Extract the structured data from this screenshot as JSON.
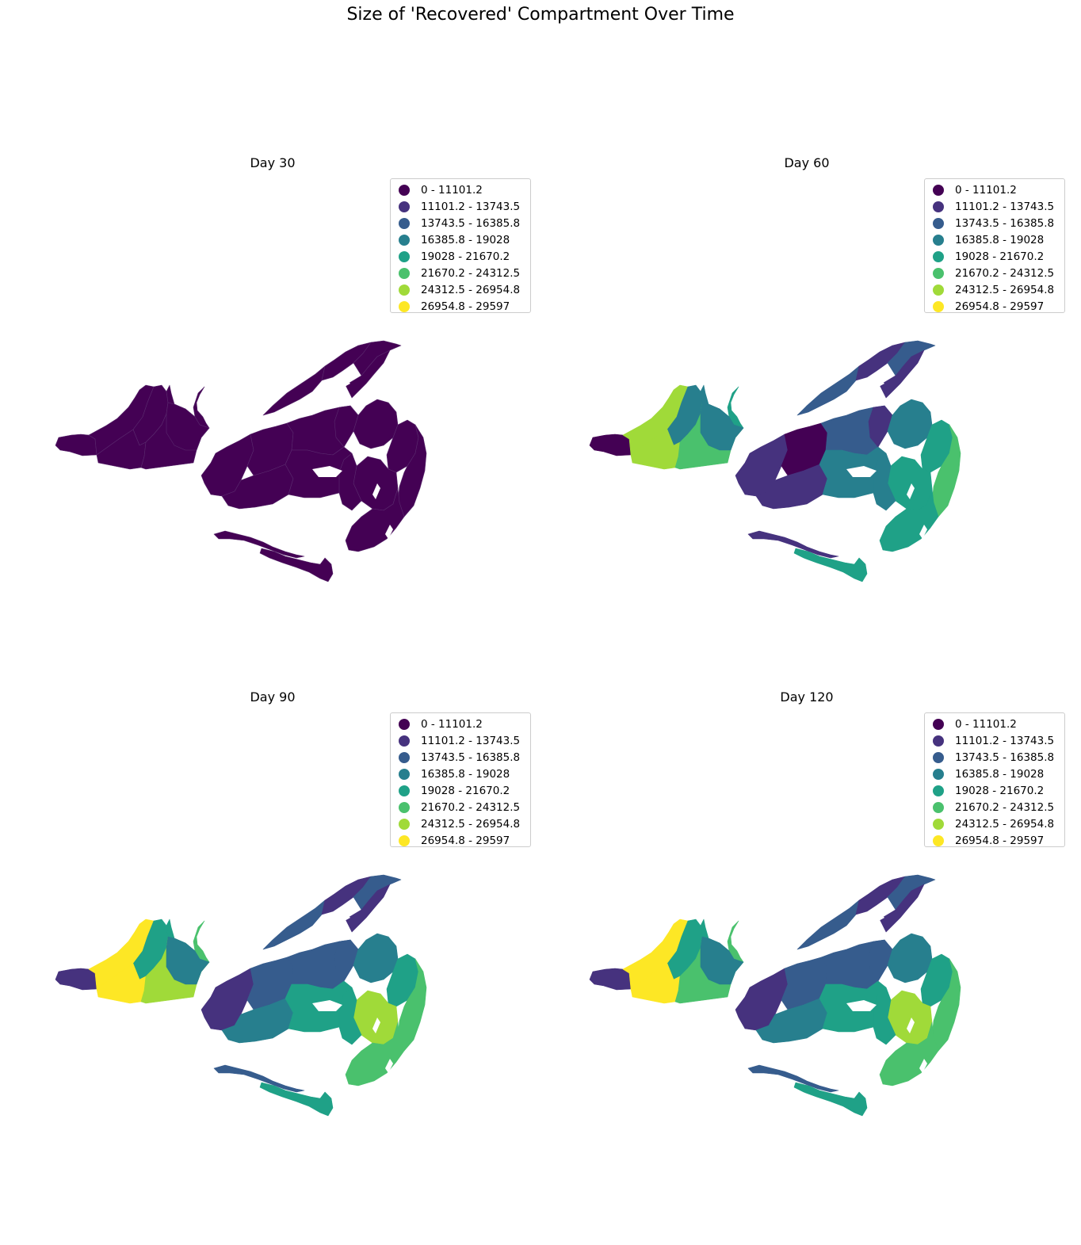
{
  "figure": {
    "title": "Size of 'Recovered' Compartment Over Time"
  },
  "legend": {
    "items": [
      {
        "label": "0 - 11101.2",
        "color": "#440154"
      },
      {
        "label": "11101.2 - 13743.5",
        "color": "#46327e"
      },
      {
        "label": "13743.5 - 16385.8",
        "color": "#365c8d"
      },
      {
        "label": "16385.8 - 19028",
        "color": "#277f8e"
      },
      {
        "label": "19028 - 21670.2",
        "color": "#1fa187"
      },
      {
        "label": "21670.2 - 24312.5",
        "color": "#4ac16d"
      },
      {
        "label": "24312.5 - 26954.8",
        "color": "#a0da39"
      },
      {
        "label": "26954.8 - 29597",
        "color": "#fde725"
      }
    ]
  },
  "panels": [
    {
      "title": "Day 30",
      "zones": {
        "west": [
          0,
          0,
          0,
          0,
          0
        ],
        "wedge": [
          0,
          0,
          0,
          0
        ],
        "north": [
          0,
          0,
          0,
          0
        ],
        "central": [
          0,
          0,
          0,
          0,
          0,
          0
        ],
        "east": [
          0,
          0,
          0,
          0,
          0,
          0
        ],
        "south": [
          0,
          0
        ]
      }
    },
    {
      "title": "Day 60",
      "zones": {
        "west": [
          0,
          6,
          3,
          6,
          5
        ],
        "wedge": [
          4,
          3,
          2,
          3
        ],
        "north": [
          2,
          1,
          2,
          1
        ],
        "central": [
          1,
          0,
          2,
          1,
          3,
          1
        ],
        "east": [
          3,
          4,
          5,
          4,
          4,
          3
        ],
        "south": [
          1,
          4
        ]
      }
    },
    {
      "title": "Day 90",
      "zones": {
        "west": [
          1,
          7,
          4,
          7,
          6
        ],
        "wedge": [
          5,
          4,
          3,
          3
        ],
        "north": [
          2,
          1,
          2,
          1
        ],
        "central": [
          1,
          2,
          2,
          3,
          4,
          2
        ],
        "east": [
          3,
          4,
          5,
          6,
          5,
          4
        ],
        "south": [
          2,
          4
        ]
      }
    },
    {
      "title": "Day 120",
      "zones": {
        "west": [
          1,
          7,
          4,
          7,
          5
        ],
        "wedge": [
          5,
          4,
          3,
          3
        ],
        "north": [
          2,
          1,
          2,
          1
        ],
        "central": [
          1,
          2,
          2,
          3,
          4,
          2
        ],
        "east": [
          3,
          4,
          5,
          6,
          5,
          4
        ],
        "south": [
          2,
          4
        ]
      }
    }
  ]
}
